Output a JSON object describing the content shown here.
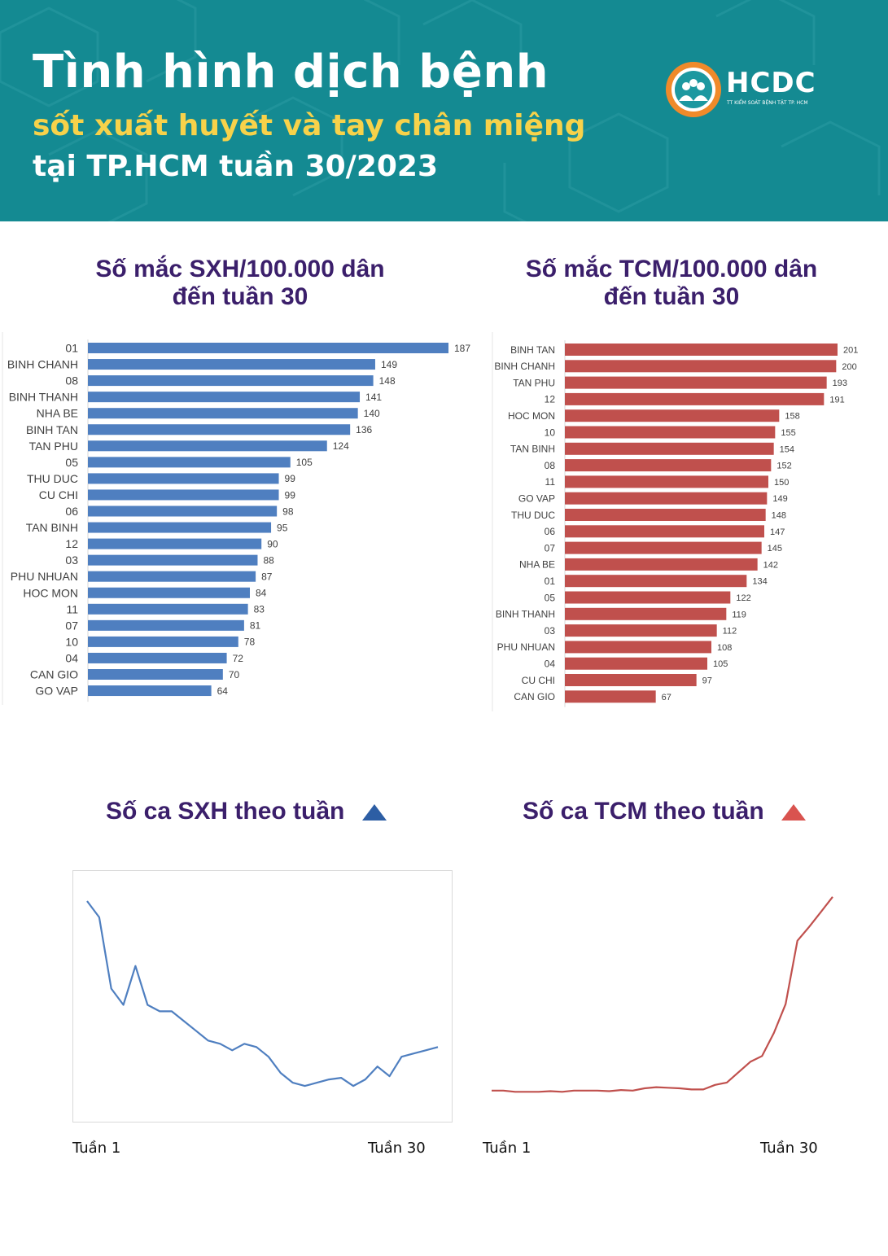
{
  "header": {
    "title": "Tình hình dịch bệnh",
    "subtitle": "sốt xuất huyết và tay chân miệng",
    "subtitle2": "tại TP.HCM tuần 30/2023",
    "logo_name": "HCDC",
    "logo_sub": "TT KIỂM SOÁT BỆNH TẬT TP. HCM"
  },
  "colors": {
    "header_bg": "#148a92",
    "accent_yellow": "#f7d24a",
    "title_purple": "#3b1f6b",
    "sxh_blue": "#4f7fc0",
    "tcm_red": "#c0504d",
    "triangle_blue": "#2d5ea4",
    "triangle_red": "#d9534f"
  },
  "charts": {
    "sxh_rate": {
      "title_line1": "Số mắc SXH/100.000 dân",
      "title_line2": "đến tuần 30"
    },
    "tcm_rate": {
      "title_line1": "Số mắc TCM/100.000 dân",
      "title_line2": "đến tuần 30"
    },
    "sxh_weekly": {
      "title": "Số ca SXH theo tuần",
      "start_label": "Tuần 1",
      "end_label": "Tuần 30"
    },
    "tcm_weekly": {
      "title": "Số ca TCM theo tuần",
      "start_label": "Tuần 1",
      "end_label": "Tuần 30"
    }
  },
  "chart_data": [
    {
      "id": "sxh_rate",
      "type": "bar",
      "orientation": "horizontal",
      "title": "Số mắc SXH/100.000 dân đến tuần 30",
      "categories": [
        "01",
        "BINH CHANH",
        "08",
        "BINH THANH",
        "NHA BE",
        "BINH TAN",
        "TAN PHU",
        "05",
        "THU DUC",
        "CU CHI",
        "06",
        "TAN BINH",
        "12",
        "03",
        "PHU NHUAN",
        "HOC MON",
        "11",
        "07",
        "10",
        "04",
        "CAN GIO",
        "GO VAP"
      ],
      "values": [
        187,
        149,
        148,
        141,
        140,
        136,
        124,
        105,
        99,
        99,
        98,
        95,
        90,
        88,
        87,
        84,
        83,
        81,
        78,
        72,
        70,
        64
      ],
      "xlim": [
        0,
        187
      ]
    },
    {
      "id": "tcm_rate",
      "type": "bar",
      "orientation": "horizontal",
      "title": "Số mắc TCM/100.000 dân đến tuần 30",
      "categories": [
        "BINH TAN",
        "BINH CHANH",
        "TAN PHU",
        "12",
        "HOC MON",
        "10",
        "TAN BINH",
        "08",
        "11",
        "GO VAP",
        "THU DUC",
        "06",
        "07",
        "NHA BE",
        "01",
        "05",
        "BINH THANH",
        "03",
        "PHU NHUAN",
        "04",
        "CU CHI",
        "CAN GIO"
      ],
      "values": [
        201,
        200,
        193,
        191,
        158,
        155,
        154,
        152,
        150,
        149,
        148,
        147,
        145,
        142,
        134,
        122,
        119,
        112,
        108,
        105,
        97,
        67
      ],
      "xlim": [
        0,
        201
      ]
    },
    {
      "id": "sxh_weekly",
      "type": "line",
      "title": "Số ca SXH theo tuần",
      "x": [
        1,
        2,
        3,
        4,
        5,
        6,
        7,
        8,
        9,
        10,
        11,
        12,
        13,
        14,
        15,
        16,
        17,
        18,
        19,
        20,
        21,
        22,
        23,
        24,
        25,
        26,
        27,
        28,
        29,
        30
      ],
      "values": [
        100,
        95,
        73,
        68,
        80,
        68,
        66,
        66,
        63,
        60,
        57,
        56,
        54,
        56,
        55,
        52,
        47,
        44,
        43,
        44,
        45,
        45.5,
        43,
        45,
        49,
        46,
        52,
        53,
        54,
        55
      ],
      "ylim": [
        38,
        102
      ]
    },
    {
      "id": "tcm_weekly",
      "type": "line",
      "title": "Số ca TCM theo tuần",
      "x": [
        1,
        2,
        3,
        4,
        5,
        6,
        7,
        8,
        9,
        10,
        11,
        12,
        13,
        14,
        15,
        16,
        17,
        18,
        19,
        20,
        21,
        22,
        23,
        24,
        25,
        26,
        27,
        28,
        29,
        30
      ],
      "values": [
        10,
        10,
        9,
        9,
        9,
        9.5,
        9,
        10,
        10,
        10,
        9.5,
        10.5,
        10,
        12,
        13,
        12.5,
        12,
        11,
        11,
        15,
        17,
        26,
        35,
        40,
        60,
        85,
        140,
        152,
        165,
        178
      ],
      "ylim": [
        0,
        180
      ]
    }
  ]
}
